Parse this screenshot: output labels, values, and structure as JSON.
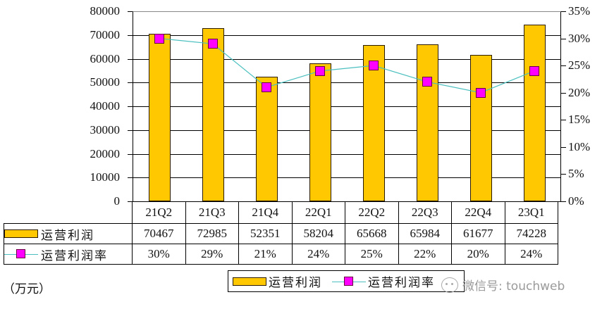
{
  "chart_data": {
    "type": "bar",
    "title": "",
    "unit_label": "（万元）",
    "categories": [
      "21Q2",
      "21Q3",
      "21Q4",
      "22Q1",
      "22Q2",
      "22Q3",
      "22Q4",
      "23Q1"
    ],
    "series": [
      {
        "name": "运营利润",
        "type": "bar",
        "axis": "left",
        "color": "#FFC800",
        "values": [
          70467,
          72985,
          52351,
          58204,
          65668,
          65984,
          61677,
          74228
        ]
      },
      {
        "name": "运营利润率",
        "type": "line",
        "axis": "right",
        "color": "#4BBFBF",
        "marker_color": "#FF00FF",
        "values": [
          30,
          29,
          21,
          24,
          25,
          22,
          20,
          24
        ],
        "display": [
          "30%",
          "29%",
          "21%",
          "24%",
          "25%",
          "22%",
          "20%",
          "24%"
        ]
      }
    ],
    "left_axis": {
      "ylim": [
        0,
        80000
      ],
      "ticks": [
        "80000",
        "70000",
        "60000",
        "50000",
        "40000",
        "30000",
        "20000",
        "10000",
        "0"
      ]
    },
    "right_axis": {
      "ylim": [
        0,
        35
      ],
      "ticks": [
        "35%",
        "30%",
        "25%",
        "20%",
        "15%",
        "10%",
        "5%",
        "0%"
      ]
    },
    "grid": true,
    "legend_position": "bottom",
    "data_table": true
  },
  "table": {
    "row1_label": "运营利润",
    "row2_label": "运营利润率"
  },
  "legend": {
    "item1": "运营利润",
    "item2": "运营利润率"
  },
  "unit": "（万元）",
  "watermark": "微信号: touchweb"
}
